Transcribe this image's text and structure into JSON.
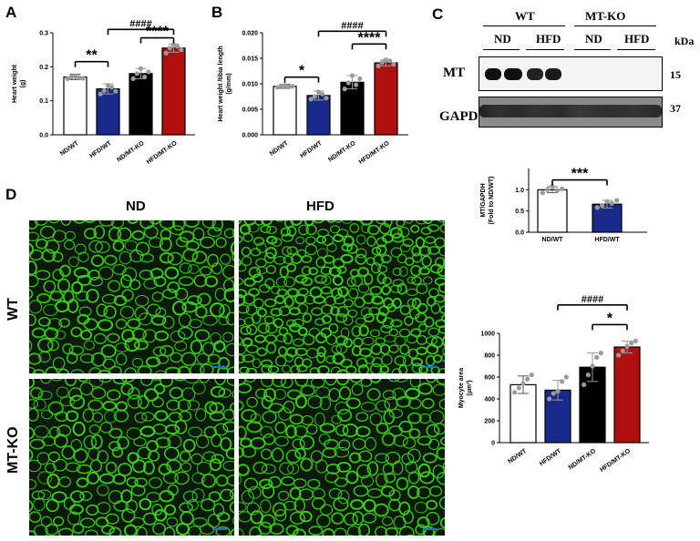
{
  "panels": {
    "A": "A",
    "B": "B",
    "C": "C",
    "D": "D"
  },
  "colors": {
    "ND_WT": "#ffffff",
    "HFD_WT": "#1a2a8c",
    "ND_MTKO": "#000000",
    "HFD_MTKO": "#b01010",
    "dots": "#9a9a9a",
    "tissue_bg": "#0b1a08",
    "tissue_green": "#3fd01f"
  },
  "chart_data": [
    {
      "id": "A",
      "type": "bar",
      "ylabel": "Heart weight\n(g)",
      "ylim": [
        0,
        0.3
      ],
      "yticks": [
        "0.0",
        "0.1",
        "0.2",
        "0.3"
      ],
      "categories": [
        "ND/WT",
        "HFD/WT",
        "ND/MT-KO",
        "HFD/MT-KO"
      ],
      "values": [
        0.17,
        0.135,
        0.18,
        0.255
      ],
      "errors": [
        0.008,
        0.015,
        0.015,
        0.012
      ],
      "points": [
        [
          0.165,
          0.17,
          0.172,
          0.168,
          0.166
        ],
        [
          0.12,
          0.13,
          0.145,
          0.14,
          0.128
        ],
        [
          0.165,
          0.18,
          0.195,
          0.17,
          0.185
        ],
        [
          0.24,
          0.255,
          0.265,
          0.26,
          0.25
        ]
      ],
      "annotations": [
        {
          "text": "**",
          "from": 0,
          "to": 1,
          "level": 0.215
        },
        {
          "text": "####",
          "from": 1,
          "to": 3,
          "level": 0.31
        },
        {
          "text": "****",
          "from": 2,
          "to": 3,
          "level": 0.285
        }
      ]
    },
    {
      "id": "B",
      "type": "bar",
      "ylabel": "Heart weight /tibia length\n(g/mm)",
      "ylim": [
        0,
        0.02
      ],
      "yticks": [
        "0.000",
        "0.005",
        "0.010",
        "0.015",
        "0.020"
      ],
      "categories": [
        "ND/WT",
        "HFD/WT",
        "ND/MT-KO",
        "HFD/MT-KO"
      ],
      "values": [
        0.0095,
        0.0077,
        0.0103,
        0.0141
      ],
      "errors": [
        0.0004,
        0.0009,
        0.0013,
        0.0006
      ],
      "points": [
        [
          0.0093,
          0.0096,
          0.0097,
          0.0094,
          0.0095
        ],
        [
          0.007,
          0.0075,
          0.0084,
          0.008,
          0.0072
        ],
        [
          0.009,
          0.0102,
          0.0116,
          0.0098,
          0.011
        ],
        [
          0.0135,
          0.0142,
          0.0147,
          0.0145,
          0.0138
        ]
      ],
      "annotations": [
        {
          "text": "*",
          "from": 0,
          "to": 1,
          "level": 0.0113
        },
        {
          "text": "####",
          "from": 1,
          "to": 3,
          "level": 0.0203
        },
        {
          "text": "****",
          "from": 2,
          "to": 3,
          "level": 0.0178
        }
      ]
    },
    {
      "id": "C-quant",
      "type": "bar",
      "ylabel": "MT/GAPDH\n(Fold to ND/WT)",
      "ylim": [
        0,
        1.5
      ],
      "yticks": [
        "0.0",
        "0.5",
        "1.0"
      ],
      "categories": [
        "ND/WT",
        "HFD/WT"
      ],
      "values": [
        1.0,
        0.66
      ],
      "errors": [
        0.07,
        0.09
      ],
      "points": [
        [
          0.93,
          1.0,
          1.08,
          0.98,
          1.02
        ],
        [
          0.58,
          0.63,
          0.72,
          0.68,
          0.75
        ]
      ],
      "annotations": [
        {
          "text": "***",
          "from": 0,
          "to": 1,
          "level": 1.23
        }
      ]
    },
    {
      "id": "D-quant",
      "type": "bar",
      "ylabel": "Myocyte area\n(µm²)",
      "ylim": [
        0,
        1000
      ],
      "yticks": [
        "0",
        "200",
        "400",
        "600",
        "800",
        "1000"
      ],
      "categories": [
        "ND/WT",
        "HFD/WT",
        "ND/MT-KO",
        "HFD/MT-KO"
      ],
      "values": [
        530,
        480,
        690,
        875
      ],
      "errors": [
        80,
        90,
        130,
        55
      ],
      "points": [
        [
          460,
          500,
          540,
          580,
          620
        ],
        [
          400,
          450,
          470,
          560,
          600
        ],
        [
          530,
          620,
          700,
          780,
          820
        ],
        [
          800,
          840,
          880,
          910,
          930
        ]
      ],
      "annotations": [
        {
          "text": "*",
          "from": 2,
          "to": 3,
          "level": 1080
        },
        {
          "text": "####",
          "from": 1,
          "to": 3,
          "level": 1260
        }
      ]
    }
  ],
  "blot": {
    "group_wt": "WT",
    "group_mtko": "MT-KO",
    "lane_nd_1": "ND",
    "lane_hfd_1": "HFD",
    "lane_nd_2": "ND",
    "lane_hfd_2": "HFD",
    "kda_label": "kDa",
    "mt_label": "MT",
    "mt_kda": "15",
    "gapdh_label": "GAPDH",
    "gapdh_kda": "37"
  },
  "micrographs": {
    "col_nd": "ND",
    "col_hfd": "HFD",
    "row_wt": "WT",
    "row_mtko": "MT-KO"
  }
}
